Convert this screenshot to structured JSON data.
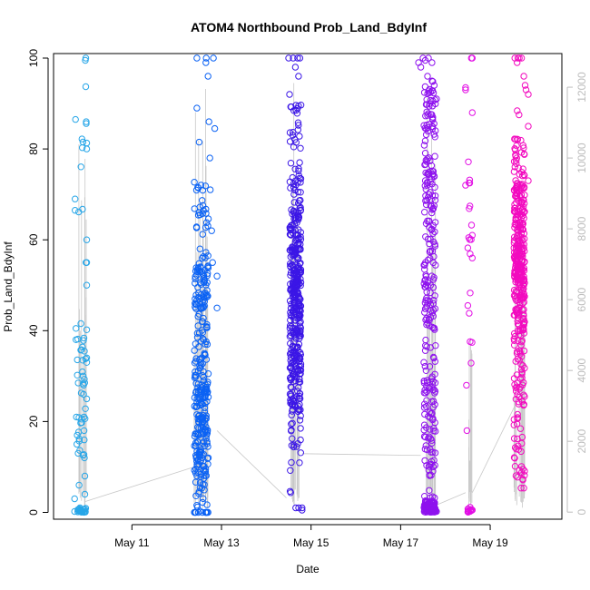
{
  "chart_data": {
    "type": "scatter",
    "title": "ATOM4 Northbound Prob_Land_BdyInf",
    "xlabel": "Date",
    "ylabel": "Prob_Land_BdyInf",
    "xlim": [
      9.25,
      20.6
    ],
    "ylim": [
      -1.5,
      101
    ],
    "x_ticks": [
      11,
      13,
      15,
      17,
      19
    ],
    "x_tick_labels": [
      "May 11",
      "May 13",
      "May 15",
      "May 17",
      "May 19"
    ],
    "y_ticks": [
      0,
      20,
      40,
      60,
      80,
      100
    ],
    "secondary_axis": {
      "ylim": [
        -200,
        12950
      ],
      "ticks": [
        0,
        2000,
        4000,
        6000,
        8000,
        10000,
        12000
      ],
      "color": "#bdbdbd"
    },
    "grid": false,
    "legend": "none",
    "point_symbol": "open-circle",
    "line_color": "#c8c8c8",
    "clusters": [
      {
        "center_day": 9.88,
        "spread": 0.2,
        "color": "#27a6e8",
        "points": [
          [
            9.72,
            0.2
          ],
          [
            9.72,
            3
          ],
          [
            9.73,
            66.5
          ],
          [
            9.73,
            69
          ],
          [
            9.74,
            86.5
          ],
          [
            9.75,
            40.5
          ],
          [
            9.75,
            38
          ],
          [
            9.76,
            21
          ],
          [
            9.77,
            15
          ],
          [
            9.78,
            17
          ],
          [
            9.8,
            13
          ],
          [
            9.82,
            6
          ],
          [
            9.84,
            1
          ],
          [
            9.86,
            0.3
          ],
          [
            9.88,
            0.1
          ],
          [
            9.9,
            0.2
          ],
          [
            9.91,
            30
          ],
          [
            9.92,
            26
          ],
          [
            9.92,
            28
          ],
          [
            9.93,
            21
          ],
          [
            9.93,
            18
          ],
          [
            9.94,
            12
          ],
          [
            9.95,
            8
          ],
          [
            9.95,
            4
          ],
          [
            9.96,
            0.2
          ],
          [
            9.96,
            99.5
          ],
          [
            9.97,
            100
          ],
          [
            9.97,
            93.7
          ],
          [
            9.98,
            86
          ],
          [
            9.98,
            85.6
          ],
          [
            9.99,
            81.3
          ],
          [
            9.99,
            80
          ],
          [
            9.99,
            60
          ],
          [
            9.99,
            55
          ],
          [
            9.99,
            50
          ],
          [
            9.99,
            40.2
          ],
          [
            9.99,
            34
          ],
          [
            9.99,
            33
          ],
          [
            9.99,
            25
          ]
        ]
      },
      {
        "center_day": 12.55,
        "spread": 0.32,
        "color": "#0b62f4",
        "points": [
          [
            12.45,
            100
          ],
          [
            12.45,
            89
          ],
          [
            12.5,
            81.5
          ],
          [
            12.5,
            66
          ],
          [
            12.52,
            58
          ],
          [
            12.55,
            48
          ],
          [
            12.56,
            45
          ],
          [
            12.58,
            42
          ],
          [
            12.6,
            38
          ],
          [
            12.62,
            35
          ],
          [
            12.65,
            99
          ],
          [
            12.66,
            100
          ],
          [
            12.7,
            96
          ],
          [
            12.72,
            86
          ],
          [
            12.74,
            78
          ],
          [
            12.75,
            71
          ],
          [
            12.78,
            62
          ],
          [
            12.8,
            55
          ],
          [
            12.82,
            100
          ],
          [
            12.85,
            84.5
          ],
          [
            12.9,
            52
          ],
          [
            12.9,
            45
          ]
        ]
      },
      {
        "center_day": 14.65,
        "spread": 0.25,
        "color": "#3b16e6",
        "points": [
          [
            14.5,
            100
          ],
          [
            14.52,
            92
          ],
          [
            14.6,
            100
          ],
          [
            14.65,
            98
          ],
          [
            14.7,
            100
          ],
          [
            14.72,
            96
          ],
          [
            14.75,
            100
          ],
          [
            14.8,
            1
          ],
          [
            14.8,
            0.5
          ]
        ]
      },
      {
        "center_day": 17.65,
        "spread": 0.26,
        "color": "#8e12ee",
        "points": [
          [
            17.4,
            99
          ],
          [
            17.45,
            98
          ],
          [
            17.5,
            100
          ],
          [
            17.55,
            99.5
          ],
          [
            17.6,
            96
          ],
          [
            17.62,
            100
          ],
          [
            17.7,
            99
          ],
          [
            17.75,
            94
          ],
          [
            17.8,
            91
          ],
          [
            17.8,
            0.2
          ],
          [
            17.75,
            0.5
          ],
          [
            17.7,
            1
          ]
        ]
      },
      {
        "center_day": 18.55,
        "spread": 0.1,
        "color": "#e20ee4",
        "points": [
          [
            18.45,
            93.5
          ],
          [
            18.45,
            93
          ],
          [
            18.45,
            72
          ],
          [
            18.47,
            28
          ],
          [
            18.48,
            18
          ],
          [
            18.5,
            0.1
          ],
          [
            18.52,
            0.2
          ],
          [
            18.55,
            0.5
          ],
          [
            18.58,
            100
          ],
          [
            18.6,
            100
          ],
          [
            18.6,
            88
          ],
          [
            18.6,
            61
          ],
          [
            18.6,
            56
          ]
        ]
      },
      {
        "center_day": 19.65,
        "spread": 0.24,
        "color": "#f20abf",
        "points": [
          [
            19.55,
            100
          ],
          [
            19.6,
            99
          ],
          [
            19.62,
            100
          ],
          [
            19.65,
            100
          ],
          [
            19.7,
            100
          ],
          [
            19.75,
            96
          ],
          [
            19.78,
            94
          ],
          [
            19.8,
            93
          ],
          [
            19.85,
            92
          ],
          [
            19.85,
            85
          ],
          [
            19.85,
            73
          ]
        ]
      }
    ]
  }
}
